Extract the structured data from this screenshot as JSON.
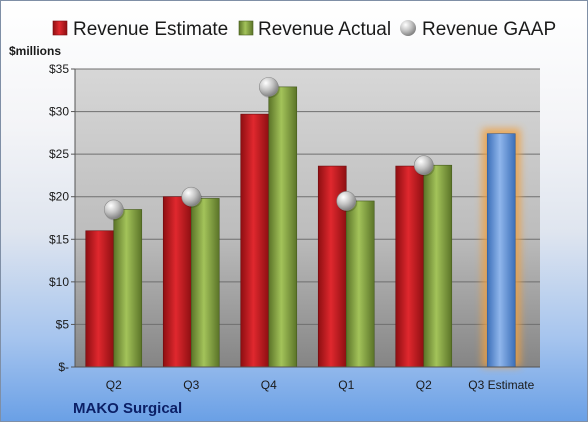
{
  "company": "MAKO Surgical",
  "chart_data": {
    "type": "bar",
    "ylabel": "$millions",
    "ylim": [
      0,
      35
    ],
    "yticks": [
      {
        "value": 0,
        "label": "$-"
      },
      {
        "value": 5,
        "label": "$5"
      },
      {
        "value": 10,
        "label": "$10"
      },
      {
        "value": 15,
        "label": "$15"
      },
      {
        "value": 20,
        "label": "$20"
      },
      {
        "value": 25,
        "label": "$25"
      },
      {
        "value": 30,
        "label": "$30"
      },
      {
        "value": 35,
        "label": "$35"
      }
    ],
    "grid": true,
    "legend_position": "top",
    "categories": [
      "Q2",
      "Q3",
      "Q4",
      "Q1",
      "Q2",
      "Q3 Estimate"
    ],
    "series": [
      {
        "name": "Revenue Estimate",
        "type": "bar",
        "color": "#c0161c",
        "values": [
          16.0,
          20.0,
          29.7,
          23.6,
          23.6,
          null
        ]
      },
      {
        "name": "Revenue Actual",
        "type": "bar",
        "color": "#7c9a3a",
        "values": [
          18.5,
          19.8,
          32.9,
          19.5,
          23.7,
          null
        ]
      },
      {
        "name": "Revenue GAAP",
        "type": "marker",
        "color": "#b5b5b5",
        "values": [
          18.5,
          20.0,
          32.9,
          19.5,
          23.7,
          null
        ]
      },
      {
        "name": "",
        "type": "bar",
        "color": "#5b8fd6",
        "highlight": "#f0a040",
        "values": [
          null,
          null,
          null,
          null,
          null,
          27.4
        ]
      }
    ]
  }
}
